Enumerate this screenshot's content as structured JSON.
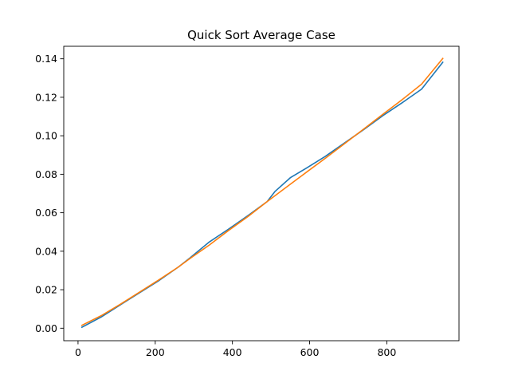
{
  "chart_data": {
    "type": "line",
    "title": "Quick Sort Average Case",
    "xlabel": "",
    "ylabel": "",
    "xlim": [
      -37,
      987
    ],
    "ylim": [
      -0.0065,
      0.1465
    ],
    "xticks": [
      0,
      200,
      400,
      600,
      800
    ],
    "yticks": [
      0.0,
      0.02,
      0.04,
      0.06,
      0.08,
      0.1,
      0.12,
      0.14
    ],
    "xtick_labels": [
      "0",
      "200",
      "400",
      "600",
      "800"
    ],
    "ytick_labels": [
      "0.00",
      "0.02",
      "0.04",
      "0.06",
      "0.08",
      "0.10",
      "0.12",
      "0.14"
    ],
    "grid": false,
    "legend": "none",
    "series": [
      {
        "color": "#1f77b4",
        "x": [
          10,
          60,
          110,
          160,
          210,
          260,
          290,
          340,
          390,
          440,
          490,
          510,
          550,
          590,
          640,
          690,
          740,
          790,
          840,
          890,
          945
        ],
        "y": [
          0.0005,
          0.0058,
          0.0122,
          0.0185,
          0.0248,
          0.0318,
          0.0365,
          0.0448,
          0.0515,
          0.0585,
          0.0658,
          0.071,
          0.0782,
          0.083,
          0.0892,
          0.0962,
          0.1032,
          0.1105,
          0.1172,
          0.1242,
          0.1382
        ]
      },
      {
        "color": "#ff7f0e",
        "x": [
          10,
          60,
          110,
          160,
          210,
          260,
          290,
          340,
          390,
          440,
          490,
          510,
          550,
          590,
          640,
          690,
          740,
          790,
          840,
          890,
          945
        ],
        "y": [
          0.0015,
          0.0065,
          0.0125,
          0.0188,
          0.0252,
          0.0318,
          0.0362,
          0.0432,
          0.0508,
          0.058,
          0.0658,
          0.0688,
          0.0748,
          0.0808,
          0.0882,
          0.0958,
          0.1035,
          0.1112,
          0.1188,
          0.1268,
          0.1402
        ]
      }
    ]
  }
}
